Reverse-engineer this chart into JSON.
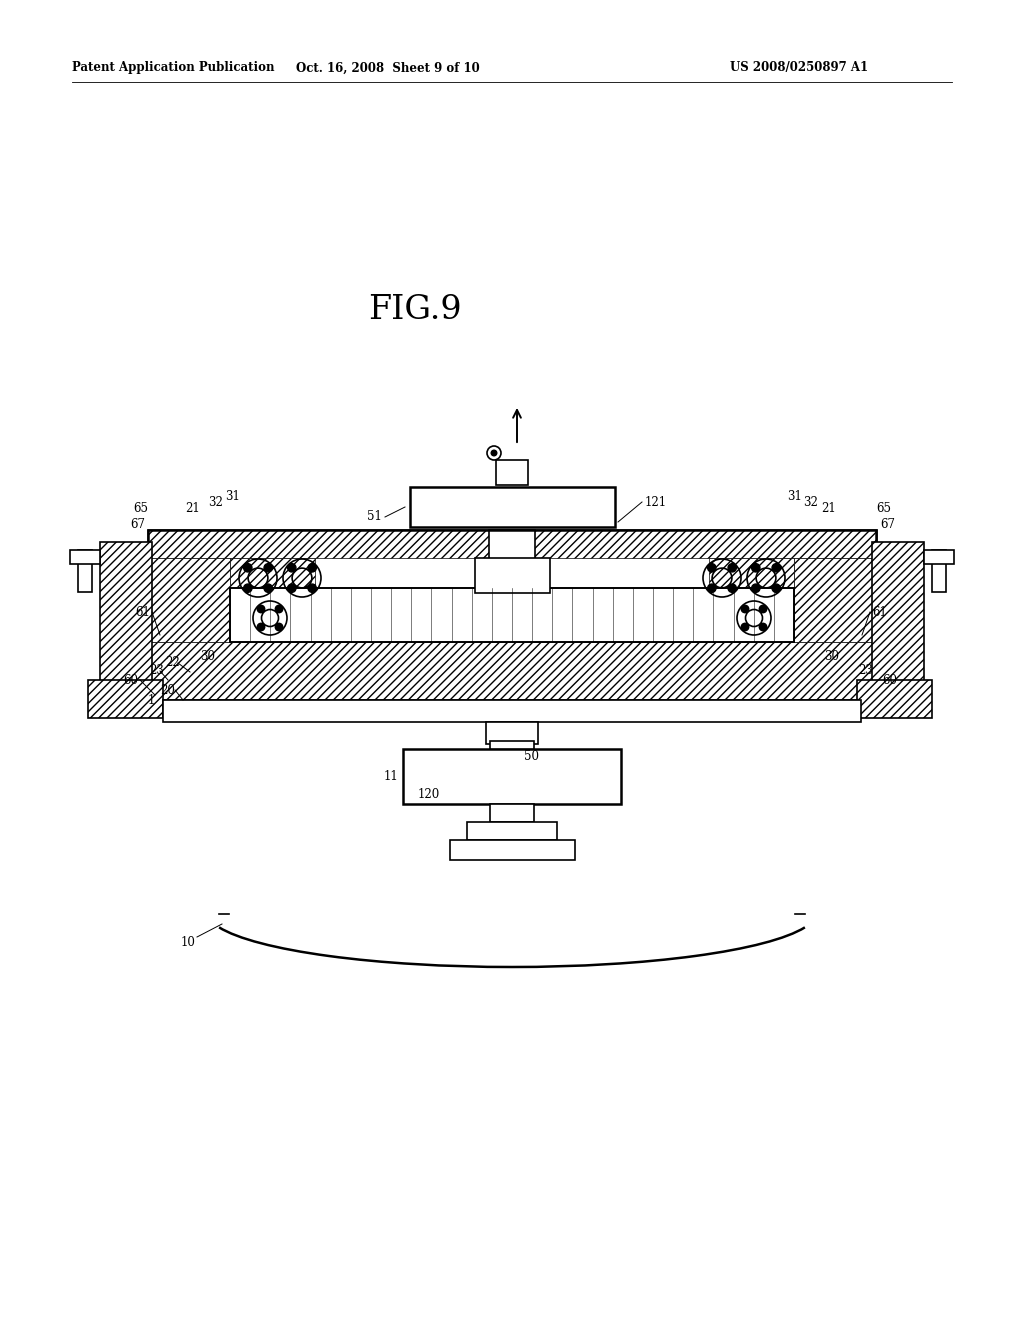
{
  "background_color": "#ffffff",
  "header_left": "Patent Application Publication",
  "header_center": "Oct. 16, 2008  Sheet 9 of 10",
  "header_right": "US 2008/0250897 A1",
  "figure_label": "FIG.9"
}
